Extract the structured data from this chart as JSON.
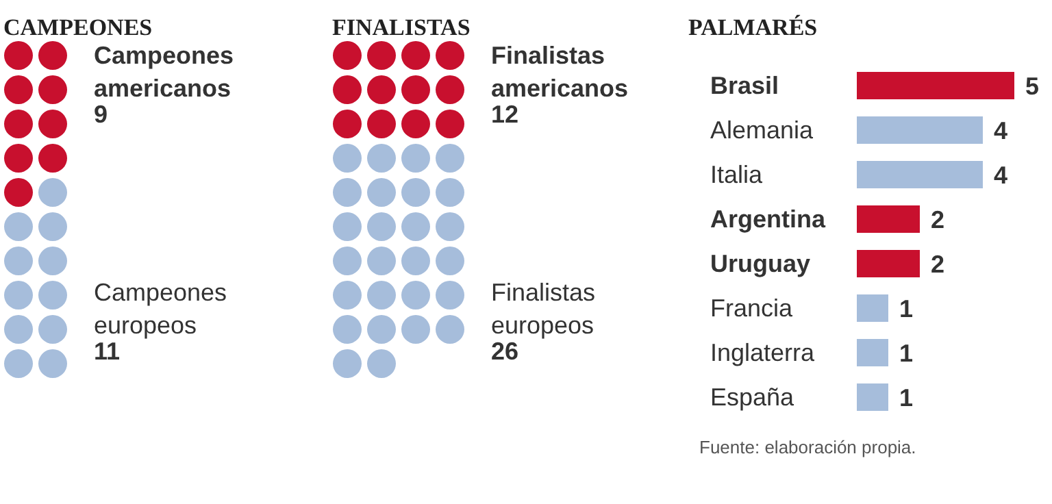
{
  "chart_data": [
    {
      "type": "other",
      "title": "CAMPEONES",
      "categories": [
        "Campeones americanos",
        "Campeones europeos"
      ],
      "values": [
        9,
        11
      ],
      "colors": [
        "#c8102e",
        "#a6bddb"
      ],
      "data_labels": true
    },
    {
      "type": "other",
      "title": "FINALISTAS",
      "categories": [
        "Finalistas americanos",
        "Finalistas europeos"
      ],
      "values": [
        12,
        26
      ],
      "colors": [
        "#c8102e",
        "#a6bddb"
      ],
      "data_labels": true
    },
    {
      "type": "bar",
      "orientation": "horizontal",
      "title": "PALMARÉS",
      "categories": [
        "Brasil",
        "Alemania",
        "Italia",
        "Argentina",
        "Uruguay",
        "Francia",
        "Inglaterra",
        "España"
      ],
      "values": [
        5,
        4,
        4,
        2,
        2,
        1,
        1,
        1
      ],
      "colors": [
        "#c8102e",
        "#a6bddb",
        "#a6bddb",
        "#c8102e",
        "#c8102e",
        "#a6bddb",
        "#a6bddb",
        "#a6bddb"
      ],
      "data_labels": true,
      "annotations": [
        "Fuente: elaboración propia."
      ]
    }
  ]
}
